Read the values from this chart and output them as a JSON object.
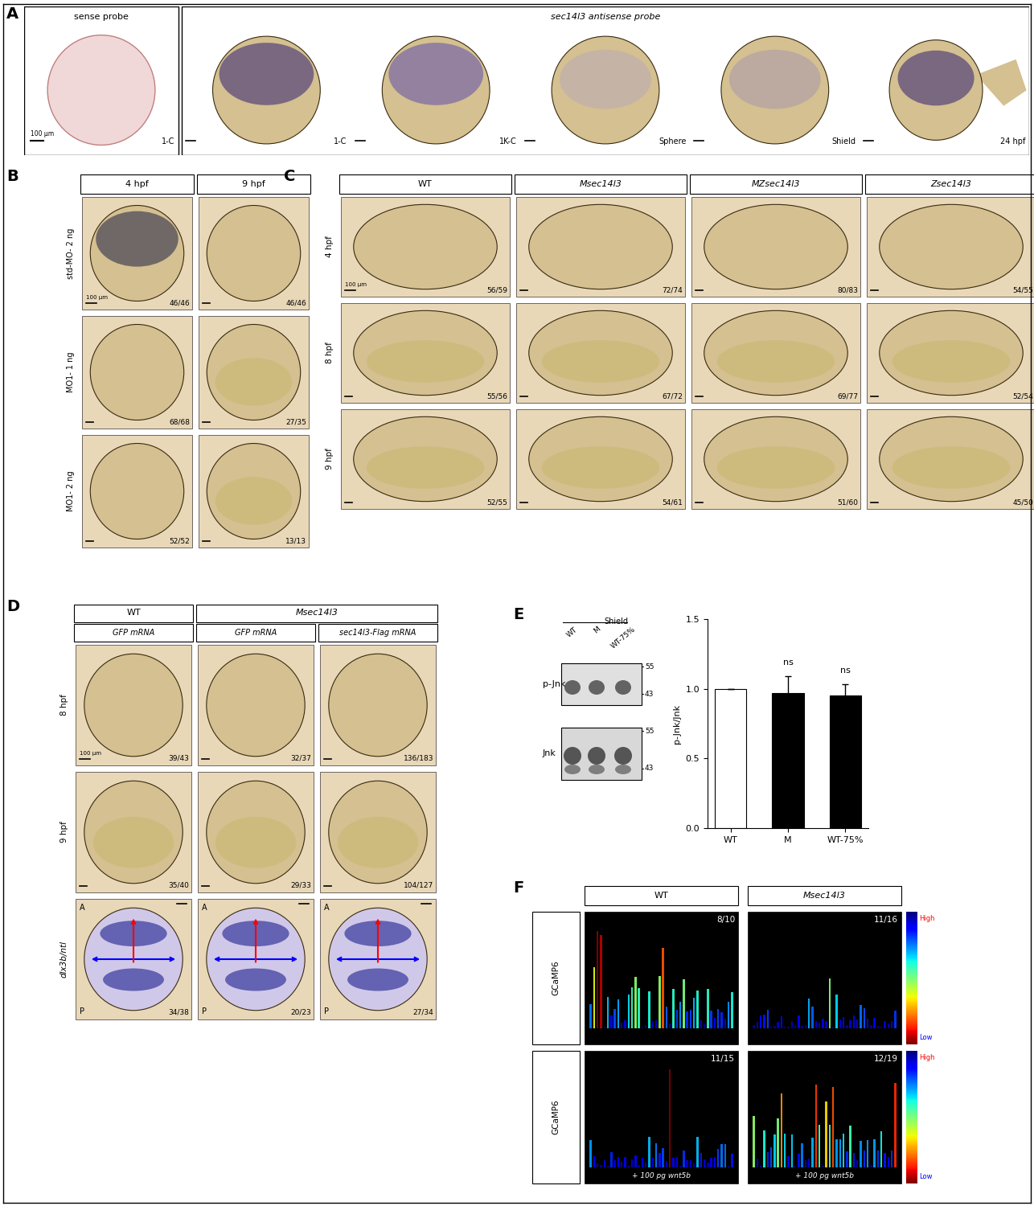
{
  "panel_A": {
    "label": "A",
    "sense_label": "sense probe",
    "antisense_label": "sec14l3 antisense probe",
    "subpanel_labels": [
      "1-C",
      "1-C",
      "1K-C",
      "Sphere",
      "Shield",
      "24 hpf"
    ],
    "scale_text": "100 μm"
  },
  "panel_B": {
    "label": "B",
    "col_headers": [
      "4 hpf",
      "9 hpf"
    ],
    "row_headers": [
      "std-MO- 2 ng",
      "MO1- 1 ng",
      "MO1- 2 ng"
    ],
    "counts": [
      [
        "46/46",
        "46/46"
      ],
      [
        "68/68",
        "27/35"
      ],
      [
        "52/52",
        "13/13"
      ]
    ],
    "scale_text": "100 μm"
  },
  "panel_C": {
    "label": "C",
    "col_headers": [
      "WT",
      "Msec14l3",
      "MZsec14l3",
      "Zsec14l3"
    ],
    "row_headers": [
      "4 hpf",
      "8 hpf",
      "9 hpf"
    ],
    "counts": [
      [
        "56/59",
        "72/74",
        "80/83",
        "54/55"
      ],
      [
        "55/56",
        "67/72",
        "69/77",
        "52/54"
      ],
      [
        "52/55",
        "54/61",
        "51/60",
        "45/50"
      ]
    ],
    "scale_text": "100 μm"
  },
  "panel_D": {
    "label": "D",
    "col_group1_header": "WT",
    "col_group2_header": "Msec14l3",
    "col_headers": [
      "GFP mRNA",
      "GFP mRNA",
      "sec14l3-Flag mRNA"
    ],
    "row_headers": [
      "8 hpf",
      "9 hpf",
      "dlx3b/ntl"
    ],
    "counts": [
      [
        "39/43",
        "32/37",
        "136/183"
      ],
      [
        "35/40",
        "29/33",
        "104/127"
      ],
      [
        "34/38",
        "20/23",
        "27/34"
      ]
    ],
    "scale_text": "100 μm"
  },
  "panel_E": {
    "label": "E",
    "blot_title": "Shield",
    "blot_cols": [
      "WT",
      "M",
      "WT-75%"
    ],
    "pjnk_label": "p-Jnk",
    "jnk_label": "Jnk",
    "mw_markers": [
      55,
      43
    ],
    "bar_categories": [
      "WT",
      "M",
      "WT-75%"
    ],
    "bar_values": [
      1.0,
      0.97,
      0.95
    ],
    "bar_errors": [
      0.0,
      0.12,
      0.08
    ],
    "bar_colors": [
      "white",
      "black",
      "black"
    ],
    "bar_ylabel": "p-Jnk/Jnk",
    "bar_ylim": [
      0.0,
      1.5
    ],
    "bar_yticks": [
      0.0,
      0.5,
      1.0,
      1.5
    ],
    "ns_label": "ns"
  },
  "panel_F": {
    "label": "F",
    "col_headers": [
      "WT",
      "Msec14l3"
    ],
    "row_headers": [
      "GCaMP6",
      "GCaMP6"
    ],
    "counts": [
      [
        "8/10",
        "11/16"
      ],
      [
        "11/15",
        "12/19"
      ]
    ],
    "wnt5b_label": "+ 100 pg wnt5b",
    "colorbar_high": "High",
    "colorbar_low": "Low"
  },
  "bg_color": "#ffffff",
  "border_color": "#000000",
  "embryo_bg": "#d4c090",
  "embryo_border": "#3a2a10",
  "cell_bg": "#e8d8b8"
}
